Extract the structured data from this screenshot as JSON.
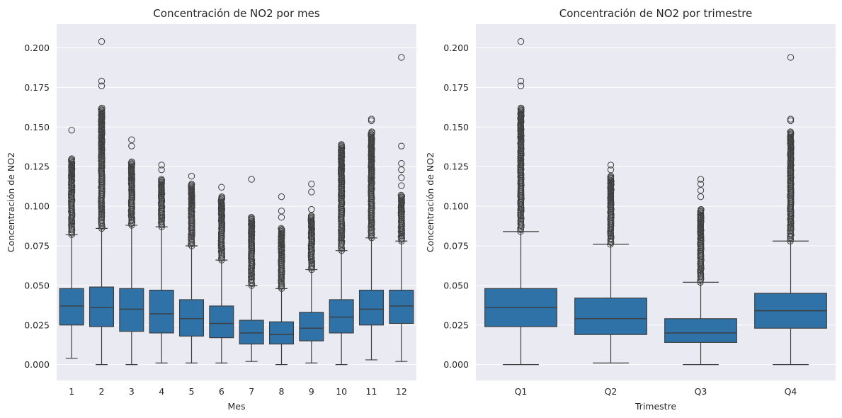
{
  "colors": {
    "figure_background": "#ffffff",
    "plot_background": "#eaeaf2",
    "box_fill": "#2e72a8",
    "line_color": "#3d3d3d",
    "grid_color": "#ffffff"
  },
  "chart_data": [
    {
      "type": "box",
      "title": "Concentración de NO2 por mes",
      "xlabel": "Mes",
      "ylabel": "Concentración de NO2",
      "ylim": [
        -0.01,
        0.215
      ],
      "yticks": [
        0.0,
        0.025,
        0.05,
        0.075,
        0.1,
        0.125,
        0.15,
        0.175,
        0.2
      ],
      "ytick_labels": [
        "0.000",
        "0.025",
        "0.050",
        "0.075",
        "0.100",
        "0.125",
        "0.150",
        "0.175",
        "0.200"
      ],
      "grid": true,
      "categories": [
        "1",
        "2",
        "3",
        "4",
        "5",
        "6",
        "7",
        "8",
        "9",
        "10",
        "11",
        "12"
      ],
      "boxes": [
        {
          "category": "1",
          "whisker_low": 0.004,
          "q1": 0.025,
          "median": 0.037,
          "q3": 0.048,
          "whisker_high": 0.082,
          "outlier_range": [
            0.082,
            0.13
          ],
          "outliers": [
            0.148
          ]
        },
        {
          "category": "2",
          "whisker_low": 0.0,
          "q1": 0.024,
          "median": 0.036,
          "q3": 0.049,
          "whisker_high": 0.086,
          "outlier_range": [
            0.086,
            0.162
          ],
          "outliers": [
            0.176,
            0.179,
            0.204
          ]
        },
        {
          "category": "3",
          "whisker_low": 0.0,
          "q1": 0.021,
          "median": 0.035,
          "q3": 0.048,
          "whisker_high": 0.088,
          "outlier_range": [
            0.088,
            0.128
          ],
          "outliers": [
            0.138,
            0.142
          ]
        },
        {
          "category": "4",
          "whisker_low": 0.001,
          "q1": 0.02,
          "median": 0.032,
          "q3": 0.047,
          "whisker_high": 0.087,
          "outlier_range": [
            0.087,
            0.117
          ],
          "outliers": [
            0.123,
            0.126
          ]
        },
        {
          "category": "5",
          "whisker_low": 0.001,
          "q1": 0.018,
          "median": 0.029,
          "q3": 0.041,
          "whisker_high": 0.075,
          "outlier_range": [
            0.075,
            0.114
          ],
          "outliers": [
            0.119
          ]
        },
        {
          "category": "6",
          "whisker_low": 0.001,
          "q1": 0.017,
          "median": 0.026,
          "q3": 0.037,
          "whisker_high": 0.066,
          "outlier_range": [
            0.066,
            0.106
          ],
          "outliers": [
            0.112
          ]
        },
        {
          "category": "7",
          "whisker_low": 0.002,
          "q1": 0.013,
          "median": 0.02,
          "q3": 0.028,
          "whisker_high": 0.05,
          "outlier_range": [
            0.05,
            0.093
          ],
          "outliers": [
            0.117
          ]
        },
        {
          "category": "8",
          "whisker_low": 0.0,
          "q1": 0.013,
          "median": 0.019,
          "q3": 0.027,
          "whisker_high": 0.048,
          "outlier_range": [
            0.048,
            0.086
          ],
          "outliers": [
            0.093,
            0.097,
            0.106
          ]
        },
        {
          "category": "9",
          "whisker_low": 0.001,
          "q1": 0.015,
          "median": 0.023,
          "q3": 0.033,
          "whisker_high": 0.06,
          "outlier_range": [
            0.06,
            0.094
          ],
          "outliers": [
            0.098,
            0.109,
            0.114
          ]
        },
        {
          "category": "10",
          "whisker_low": 0.0,
          "q1": 0.02,
          "median": 0.03,
          "q3": 0.041,
          "whisker_high": 0.072,
          "outlier_range": [
            0.072,
            0.139
          ],
          "outliers": []
        },
        {
          "category": "11",
          "whisker_low": 0.003,
          "q1": 0.025,
          "median": 0.035,
          "q3": 0.047,
          "whisker_high": 0.08,
          "outlier_range": [
            0.08,
            0.147
          ],
          "outliers": [
            0.154,
            0.155
          ]
        },
        {
          "category": "12",
          "whisker_low": 0.002,
          "q1": 0.026,
          "median": 0.037,
          "q3": 0.047,
          "whisker_high": 0.078,
          "outlier_range": [
            0.078,
            0.107
          ],
          "outliers": [
            0.113,
            0.118,
            0.123,
            0.127,
            0.138,
            0.194
          ]
        }
      ]
    },
    {
      "type": "box",
      "title": "Concentración de NO2 por trimestre",
      "xlabel": "Trimestre",
      "ylabel": "Concentración de NO2",
      "ylim": [
        -0.01,
        0.215
      ],
      "yticks": [
        0.0,
        0.025,
        0.05,
        0.075,
        0.1,
        0.125,
        0.15,
        0.175,
        0.2
      ],
      "ytick_labels": [
        "0.000",
        "0.025",
        "0.050",
        "0.075",
        "0.100",
        "0.125",
        "0.150",
        "0.175",
        "0.200"
      ],
      "grid": true,
      "categories": [
        "Q1",
        "Q2",
        "Q3",
        "Q4"
      ],
      "boxes": [
        {
          "category": "Q1",
          "whisker_low": 0.0,
          "q1": 0.024,
          "median": 0.036,
          "q3": 0.048,
          "whisker_high": 0.084,
          "outlier_range": [
            0.084,
            0.162
          ],
          "outliers": [
            0.176,
            0.179,
            0.204
          ]
        },
        {
          "category": "Q2",
          "whisker_low": 0.001,
          "q1": 0.019,
          "median": 0.029,
          "q3": 0.042,
          "whisker_high": 0.076,
          "outlier_range": [
            0.076,
            0.119
          ],
          "outliers": [
            0.123,
            0.126
          ]
        },
        {
          "category": "Q3",
          "whisker_low": 0.0,
          "q1": 0.014,
          "median": 0.02,
          "q3": 0.029,
          "whisker_high": 0.052,
          "outlier_range": [
            0.052,
            0.098
          ],
          "outliers": [
            0.106,
            0.11,
            0.114,
            0.117
          ]
        },
        {
          "category": "Q4",
          "whisker_low": 0.0,
          "q1": 0.023,
          "median": 0.034,
          "q3": 0.045,
          "whisker_high": 0.078,
          "outlier_range": [
            0.078,
            0.147
          ],
          "outliers": [
            0.154,
            0.155,
            0.194
          ]
        }
      ]
    }
  ]
}
